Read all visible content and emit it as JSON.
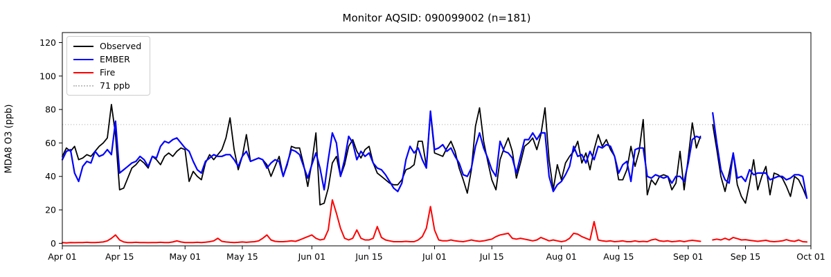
{
  "title": "Monitor AQSID: 090099002 (n=181)",
  "legend": [
    {
      "label": "Observed",
      "color": "#000000",
      "style": "solid"
    },
    {
      "label": "EMBER",
      "color": "#0000ff",
      "style": "solid"
    },
    {
      "label": "Fire",
      "color": "#ff0000",
      "style": "solid"
    },
    {
      "label": "71 ppb",
      "color": "#c0c0c0",
      "style": "dotted"
    }
  ],
  "chart_data": {
    "type": "line",
    "title": "Monitor AQSID: 090099002 (n=181)",
    "xlabel": "",
    "ylabel": "MDA8 O3 (ppb)",
    "n_points": 181,
    "x_start_label": "Apr 01",
    "x_end_label": "Oct 01",
    "x_unit": "day",
    "xlim_days": [
      0,
      183
    ],
    "ylim": [
      -1.5,
      126
    ],
    "grid": false,
    "legend_position": "upper left",
    "threshold": {
      "value": 71,
      "label": "71 ppb",
      "color": "#c0c0c0",
      "linestyle": "dotted"
    },
    "x_ticks": [
      {
        "label": "Apr 01",
        "day": 0
      },
      {
        "label": "Apr 15",
        "day": 14
      },
      {
        "label": "May 01",
        "day": 30
      },
      {
        "label": "May 15",
        "day": 44
      },
      {
        "label": "Jun 01",
        "day": 61
      },
      {
        "label": "Jun 15",
        "day": 75
      },
      {
        "label": "Jul 01",
        "day": 91
      },
      {
        "label": "Jul 15",
        "day": 105
      },
      {
        "label": "Aug 01",
        "day": 122
      },
      {
        "label": "Aug 15",
        "day": 136
      },
      {
        "label": "Sep 01",
        "day": 153
      },
      {
        "label": "Sep 15",
        "day": 167
      },
      {
        "label": "Oct 01",
        "day": 183
      }
    ],
    "y_ticks": [
      0,
      20,
      40,
      60,
      80,
      100,
      120
    ],
    "series": [
      {
        "name": "Observed",
        "color": "#000000",
        "width": 1.8,
        "values": [
          52,
          57,
          55,
          58,
          50,
          51,
          53,
          52,
          55,
          58,
          60,
          63,
          83,
          65,
          32,
          33,
          39,
          45,
          47,
          50,
          48,
          45,
          52,
          50,
          47,
          52,
          54,
          52,
          55,
          57,
          56,
          37,
          43,
          40,
          38,
          48,
          53,
          50,
          53,
          56,
          63,
          75,
          56,
          44,
          52,
          65,
          49,
          50,
          51,
          50,
          47,
          40,
          46,
          52,
          40,
          47,
          58,
          57,
          57,
          47,
          34,
          48,
          66,
          23,
          24,
          33,
          48,
          52,
          40,
          47,
          58,
          62,
          55,
          51,
          56,
          58,
          48,
          42,
          40,
          38,
          36,
          35,
          35,
          38,
          44,
          45,
          47,
          61,
          61,
          46,
          78,
          54,
          53,
          52,
          57,
          61,
          55,
          45,
          38,
          30,
          44,
          70,
          81,
          61,
          49,
          38,
          32,
          50,
          57,
          63,
          55,
          39,
          48,
          58,
          60,
          63,
          56,
          65,
          81,
          50,
          32,
          47,
          38,
          48,
          52,
          55,
          61,
          48,
          54,
          44,
          56,
          65,
          58,
          62,
          56,
          52,
          38,
          38,
          44,
          58,
          46,
          55,
          74,
          29,
          38,
          35,
          40,
          41,
          40,
          32,
          36,
          55,
          32,
          51,
          72,
          57,
          64,
          null,
          null,
          71,
          56,
          40,
          31,
          42,
          54,
          35,
          28,
          24,
          36,
          50,
          32,
          40,
          46,
          29,
          42,
          41,
          39,
          34,
          28,
          40,
          38,
          33,
          27
        ]
      },
      {
        "name": "EMBER",
        "color": "#0000ff",
        "width": 2.2,
        "values": [
          50,
          55,
          56,
          42,
          37,
          46,
          49,
          48,
          55,
          52,
          53,
          56,
          53,
          73,
          42,
          44,
          46,
          48,
          49,
          52,
          50,
          46,
          52,
          51,
          58,
          61,
          60,
          62,
          63,
          60,
          57,
          55,
          49,
          44,
          42,
          49,
          51,
          53,
          52,
          52,
          53,
          53,
          50,
          46,
          52,
          55,
          49,
          50,
          51,
          50,
          45,
          48,
          50,
          49,
          40,
          48,
          56,
          55,
          53,
          46,
          39,
          47,
          54,
          45,
          32,
          50,
          66,
          60,
          40,
          50,
          64,
          60,
          50,
          55,
          52,
          54,
          48,
          45,
          44,
          41,
          37,
          33,
          31,
          36,
          50,
          58,
          54,
          57,
          50,
          45,
          79,
          56,
          57,
          59,
          55,
          57,
          52,
          48,
          41,
          40,
          45,
          58,
          66,
          57,
          51,
          44,
          40,
          61,
          55,
          54,
          51,
          42,
          52,
          62,
          62,
          66,
          62,
          66,
          66,
          40,
          31,
          35,
          37,
          41,
          46,
          58,
          52,
          53,
          48,
          55,
          50,
          58,
          57,
          59,
          58,
          52,
          42,
          47,
          49,
          37,
          56,
          57,
          57,
          40,
          39,
          41,
          40,
          39,
          40,
          36,
          40,
          40,
          37,
          48,
          62,
          64,
          63,
          null,
          null,
          78,
          60,
          44,
          38,
          36,
          54,
          39,
          40,
          37,
          44,
          41,
          42,
          42,
          42,
          38,
          39,
          40,
          40,
          38,
          39,
          41,
          41,
          40,
          27
        ]
      },
      {
        "name": "Fire",
        "color": "#ff0000",
        "width": 2.0,
        "values": [
          0.5,
          0.3,
          0.5,
          0.4,
          0.5,
          0.5,
          0.6,
          0.5,
          0.5,
          0.6,
          0.8,
          1.5,
          3,
          5,
          2,
          0.8,
          0.5,
          0.5,
          0.6,
          0.5,
          0.5,
          0.4,
          0.5,
          0.5,
          0.6,
          0.5,
          0.5,
          0.8,
          1.5,
          0.8,
          0.5,
          0.5,
          0.5,
          0.6,
          0.5,
          0.7,
          1,
          1.5,
          3,
          1.2,
          0.8,
          0.6,
          0.5,
          0.6,
          0.8,
          0.6,
          0.8,
          1,
          1.5,
          3,
          5,
          2,
          1.2,
          1,
          1,
          1.2,
          1.5,
          1.2,
          2,
          3,
          4,
          5,
          3,
          2,
          2.5,
          8,
          26,
          18,
          9,
          3,
          2,
          3,
          8,
          3,
          2,
          2,
          3,
          10,
          3.5,
          2,
          1.5,
          1,
          1,
          1,
          1.2,
          1,
          1,
          2,
          4,
          9,
          22,
          8,
          2,
          1.5,
          1.5,
          2,
          1.5,
          1.2,
          1,
          1.5,
          2,
          1.5,
          1.2,
          1.5,
          2,
          2.5,
          4,
          5,
          5.5,
          6,
          3,
          2.5,
          3,
          2.5,
          2,
          1.5,
          2,
          3.5,
          2.5,
          1.5,
          2,
          1.5,
          1,
          1.5,
          3,
          6,
          5.5,
          4,
          3,
          2,
          13,
          2,
          1.5,
          1.2,
          1.5,
          1,
          1.2,
          1.5,
          1,
          1,
          1.5,
          1,
          1.2,
          1,
          2,
          2.5,
          1.5,
          1.2,
          1.5,
          1,
          1.2,
          1.5,
          1,
          1.5,
          1.8,
          1.5,
          1.2,
          null,
          null,
          2,
          2.5,
          2,
          3,
          2,
          3.5,
          2.8,
          2,
          2.2,
          1.8,
          1.5,
          1.2,
          1.5,
          1.8,
          1.2,
          1,
          1.2,
          1.5,
          2.2,
          1.5,
          1.2,
          2,
          1,
          0.8
        ]
      }
    ]
  }
}
